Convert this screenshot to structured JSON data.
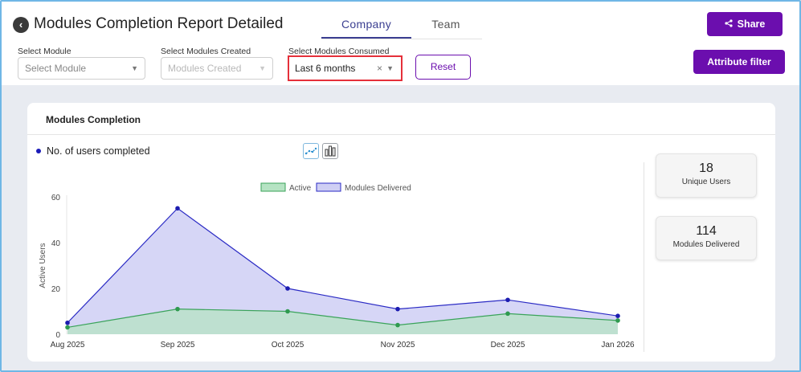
{
  "header": {
    "back_icon": "arrow-left-icon",
    "title": "Modules Completion Report Detailed",
    "tabs": [
      {
        "label": "Company",
        "active": true
      },
      {
        "label": "Team",
        "active": false
      }
    ],
    "share_label": "Share",
    "share_icon": "share-icon"
  },
  "filters": {
    "module": {
      "label": "Select Module",
      "placeholder": "Select Module"
    },
    "modules_created": {
      "label": "Select Modules Created",
      "placeholder": "Modules Created"
    },
    "modules_consumed": {
      "label": "Select Modules Consumed",
      "value": "Last 6 months",
      "clear": "×"
    },
    "reset_label": "Reset",
    "attribute_filter_label": "Attribute filter"
  },
  "card": {
    "title": "Modules Completion",
    "metric_label": "No. of users completed",
    "view_icons": [
      "line-chart-icon",
      "bar-chart-icon"
    ]
  },
  "stats": [
    {
      "value": "18",
      "label": "Unique Users"
    },
    {
      "value": "114",
      "label": "Modules Delivered"
    }
  ],
  "colors": {
    "brand_purple": "#6b0eae",
    "active_line": "#3aa35a",
    "active_fill": "#b5e3c3",
    "delivered_line": "#2a2ac4",
    "delivered_fill": "#cfcff4",
    "highlight_red": "#e5303a"
  },
  "chart_data": {
    "type": "area",
    "ylabel": "Active Users",
    "xlabel": "",
    "ylim": [
      0,
      60
    ],
    "yticks": [
      0,
      20,
      40,
      60
    ],
    "categories": [
      "Aug 2025",
      "Sep 2025",
      "Oct 2025",
      "Nov 2025",
      "Dec 2025",
      "Jan 2026"
    ],
    "legend_position": "top-center",
    "series": [
      {
        "name": "Active",
        "values": [
          3,
          11,
          10,
          4,
          9,
          6
        ]
      },
      {
        "name": "Modules Delivered",
        "values": [
          5,
          55,
          20,
          11,
          15,
          8
        ]
      }
    ]
  }
}
